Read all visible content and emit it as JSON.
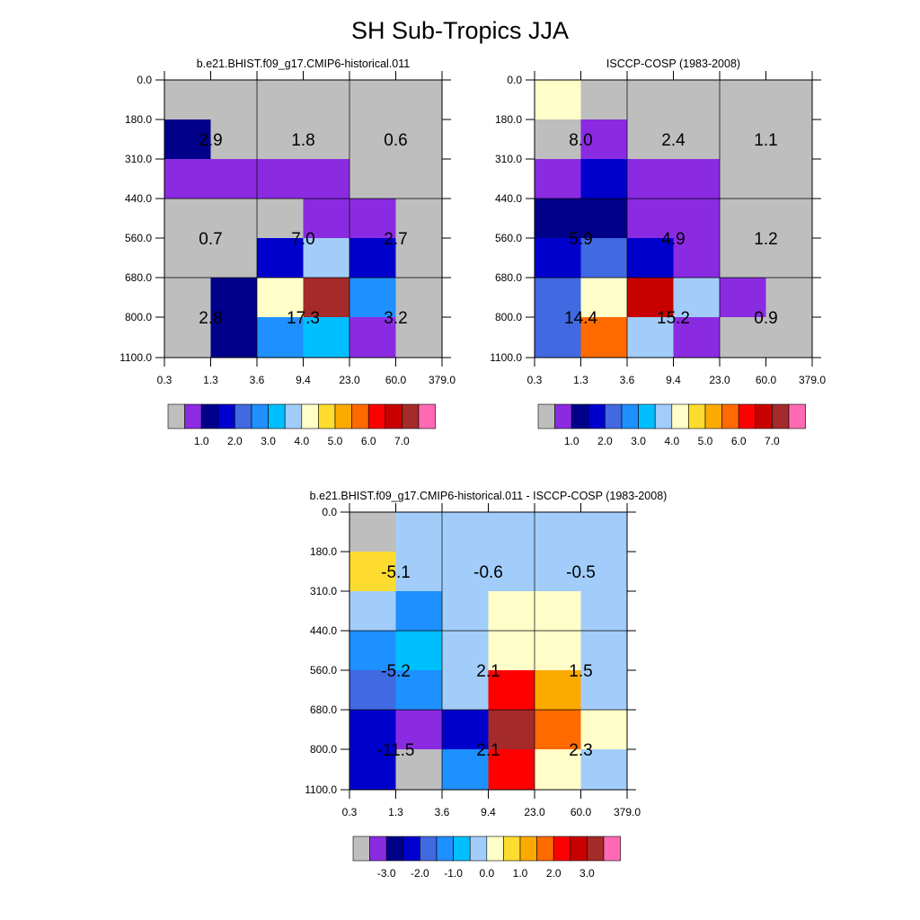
{
  "figure": {
    "title": "SH Sub-Tropics JJA"
  },
  "colors": {
    "missing": "#bebebe",
    "palette": [
      "#bebebe",
      "#8a2be2",
      "#00008b",
      "#0000cd",
      "#4169e1",
      "#1e90ff",
      "#00bfff",
      "#a2cdfa",
      "#fffdc8",
      "#fddc2f",
      "#fcaa00",
      "#ff6a00",
      "#ff0000",
      "#c80000",
      "#a52a2a",
      "#ff69b4"
    ]
  },
  "chart_data": [
    {
      "type": "heatmap",
      "title": "b.e21.BHIST.f09_g17.CMIP6-historical.011",
      "x_ticks": [
        "0.3",
        "1.3",
        "3.6",
        "9.4",
        "23.0",
        "60.0",
        "379.0"
      ],
      "y_ticks": [
        "0.0",
        "180.0",
        "310.0",
        "440.0",
        "560.0",
        "680.0",
        "800.0",
        "1100.0"
      ],
      "cells": [
        [
          0,
          0,
          0,
          0,
          0,
          0
        ],
        [
          2,
          0,
          0,
          0,
          0,
          0
        ],
        [
          1,
          1,
          1,
          1,
          0,
          0
        ],
        [
          0,
          0,
          0,
          1,
          1,
          0
        ],
        [
          0,
          0,
          3,
          7,
          3,
          0
        ],
        [
          0,
          2,
          8,
          14,
          5,
          0
        ],
        [
          0,
          2,
          5,
          6,
          1,
          0
        ]
      ],
      "box_values": [
        [
          "2.9",
          "1.8",
          "0.6"
        ],
        [
          "0.7",
          "7.0",
          "2.7"
        ],
        [
          "2.8",
          "17.3",
          "3.2"
        ]
      ],
      "colorbar": {
        "labels": [
          "1.0",
          "2.0",
          "3.0",
          "4.0",
          "5.0",
          "6.0",
          "7.0"
        ]
      }
    },
    {
      "type": "heatmap",
      "title": "ISCCP-COSP (1983-2008)",
      "x_ticks": [
        "0.3",
        "1.3",
        "3.6",
        "9.4",
        "23.0",
        "60.0",
        "379.0"
      ],
      "y_ticks": [
        "0.0",
        "180.0",
        "310.0",
        "440.0",
        "560.0",
        "680.0",
        "800.0",
        "1100.0"
      ],
      "cells": [
        [
          8,
          0,
          0,
          0,
          0,
          0
        ],
        [
          0,
          1,
          0,
          0,
          0,
          0
        ],
        [
          1,
          3,
          1,
          1,
          0,
          0
        ],
        [
          2,
          2,
          1,
          1,
          0,
          0
        ],
        [
          3,
          4,
          3,
          1,
          0,
          0
        ],
        [
          4,
          8,
          13,
          7,
          1,
          0
        ],
        [
          4,
          11,
          7,
          1,
          0,
          0
        ]
      ],
      "box_values": [
        [
          "8.0",
          "2.4",
          "1.1"
        ],
        [
          "5.9",
          "4.9",
          "1.2"
        ],
        [
          "14.4",
          "15.2",
          "0.9"
        ]
      ],
      "colorbar": {
        "labels": [
          "1.0",
          "2.0",
          "3.0",
          "4.0",
          "5.0",
          "6.0",
          "7.0"
        ]
      }
    },
    {
      "type": "heatmap",
      "title": "b.e21.BHIST.f09_g17.CMIP6-historical.011 - ISCCP-COSP (1983-2008)",
      "x_ticks": [
        "0.3",
        "1.3",
        "3.6",
        "9.4",
        "23.0",
        "60.0",
        "379.0"
      ],
      "y_ticks": [
        "0.0",
        "180.0",
        "310.0",
        "440.0",
        "560.0",
        "680.0",
        "800.0",
        "1100.0"
      ],
      "cells": [
        [
          0,
          7,
          7,
          7,
          7,
          7
        ],
        [
          9,
          7,
          7,
          7,
          7,
          7
        ],
        [
          7,
          5,
          7,
          8,
          8,
          7
        ],
        [
          5,
          6,
          7,
          8,
          8,
          7
        ],
        [
          4,
          5,
          7,
          12,
          10,
          7
        ],
        [
          3,
          1,
          3,
          14,
          11,
          8
        ],
        [
          3,
          0,
          5,
          12,
          8,
          7
        ]
      ],
      "box_values": [
        [
          "-5.1",
          "-0.6",
          "-0.5"
        ],
        [
          "-5.2",
          "2.1",
          "1.5"
        ],
        [
          "-11.5",
          "2.1",
          "2.3"
        ]
      ],
      "colorbar": {
        "labels": [
          "-3.0",
          "-2.0",
          "-1.0",
          "0.0",
          "1.0",
          "2.0",
          "3.0"
        ]
      }
    }
  ]
}
